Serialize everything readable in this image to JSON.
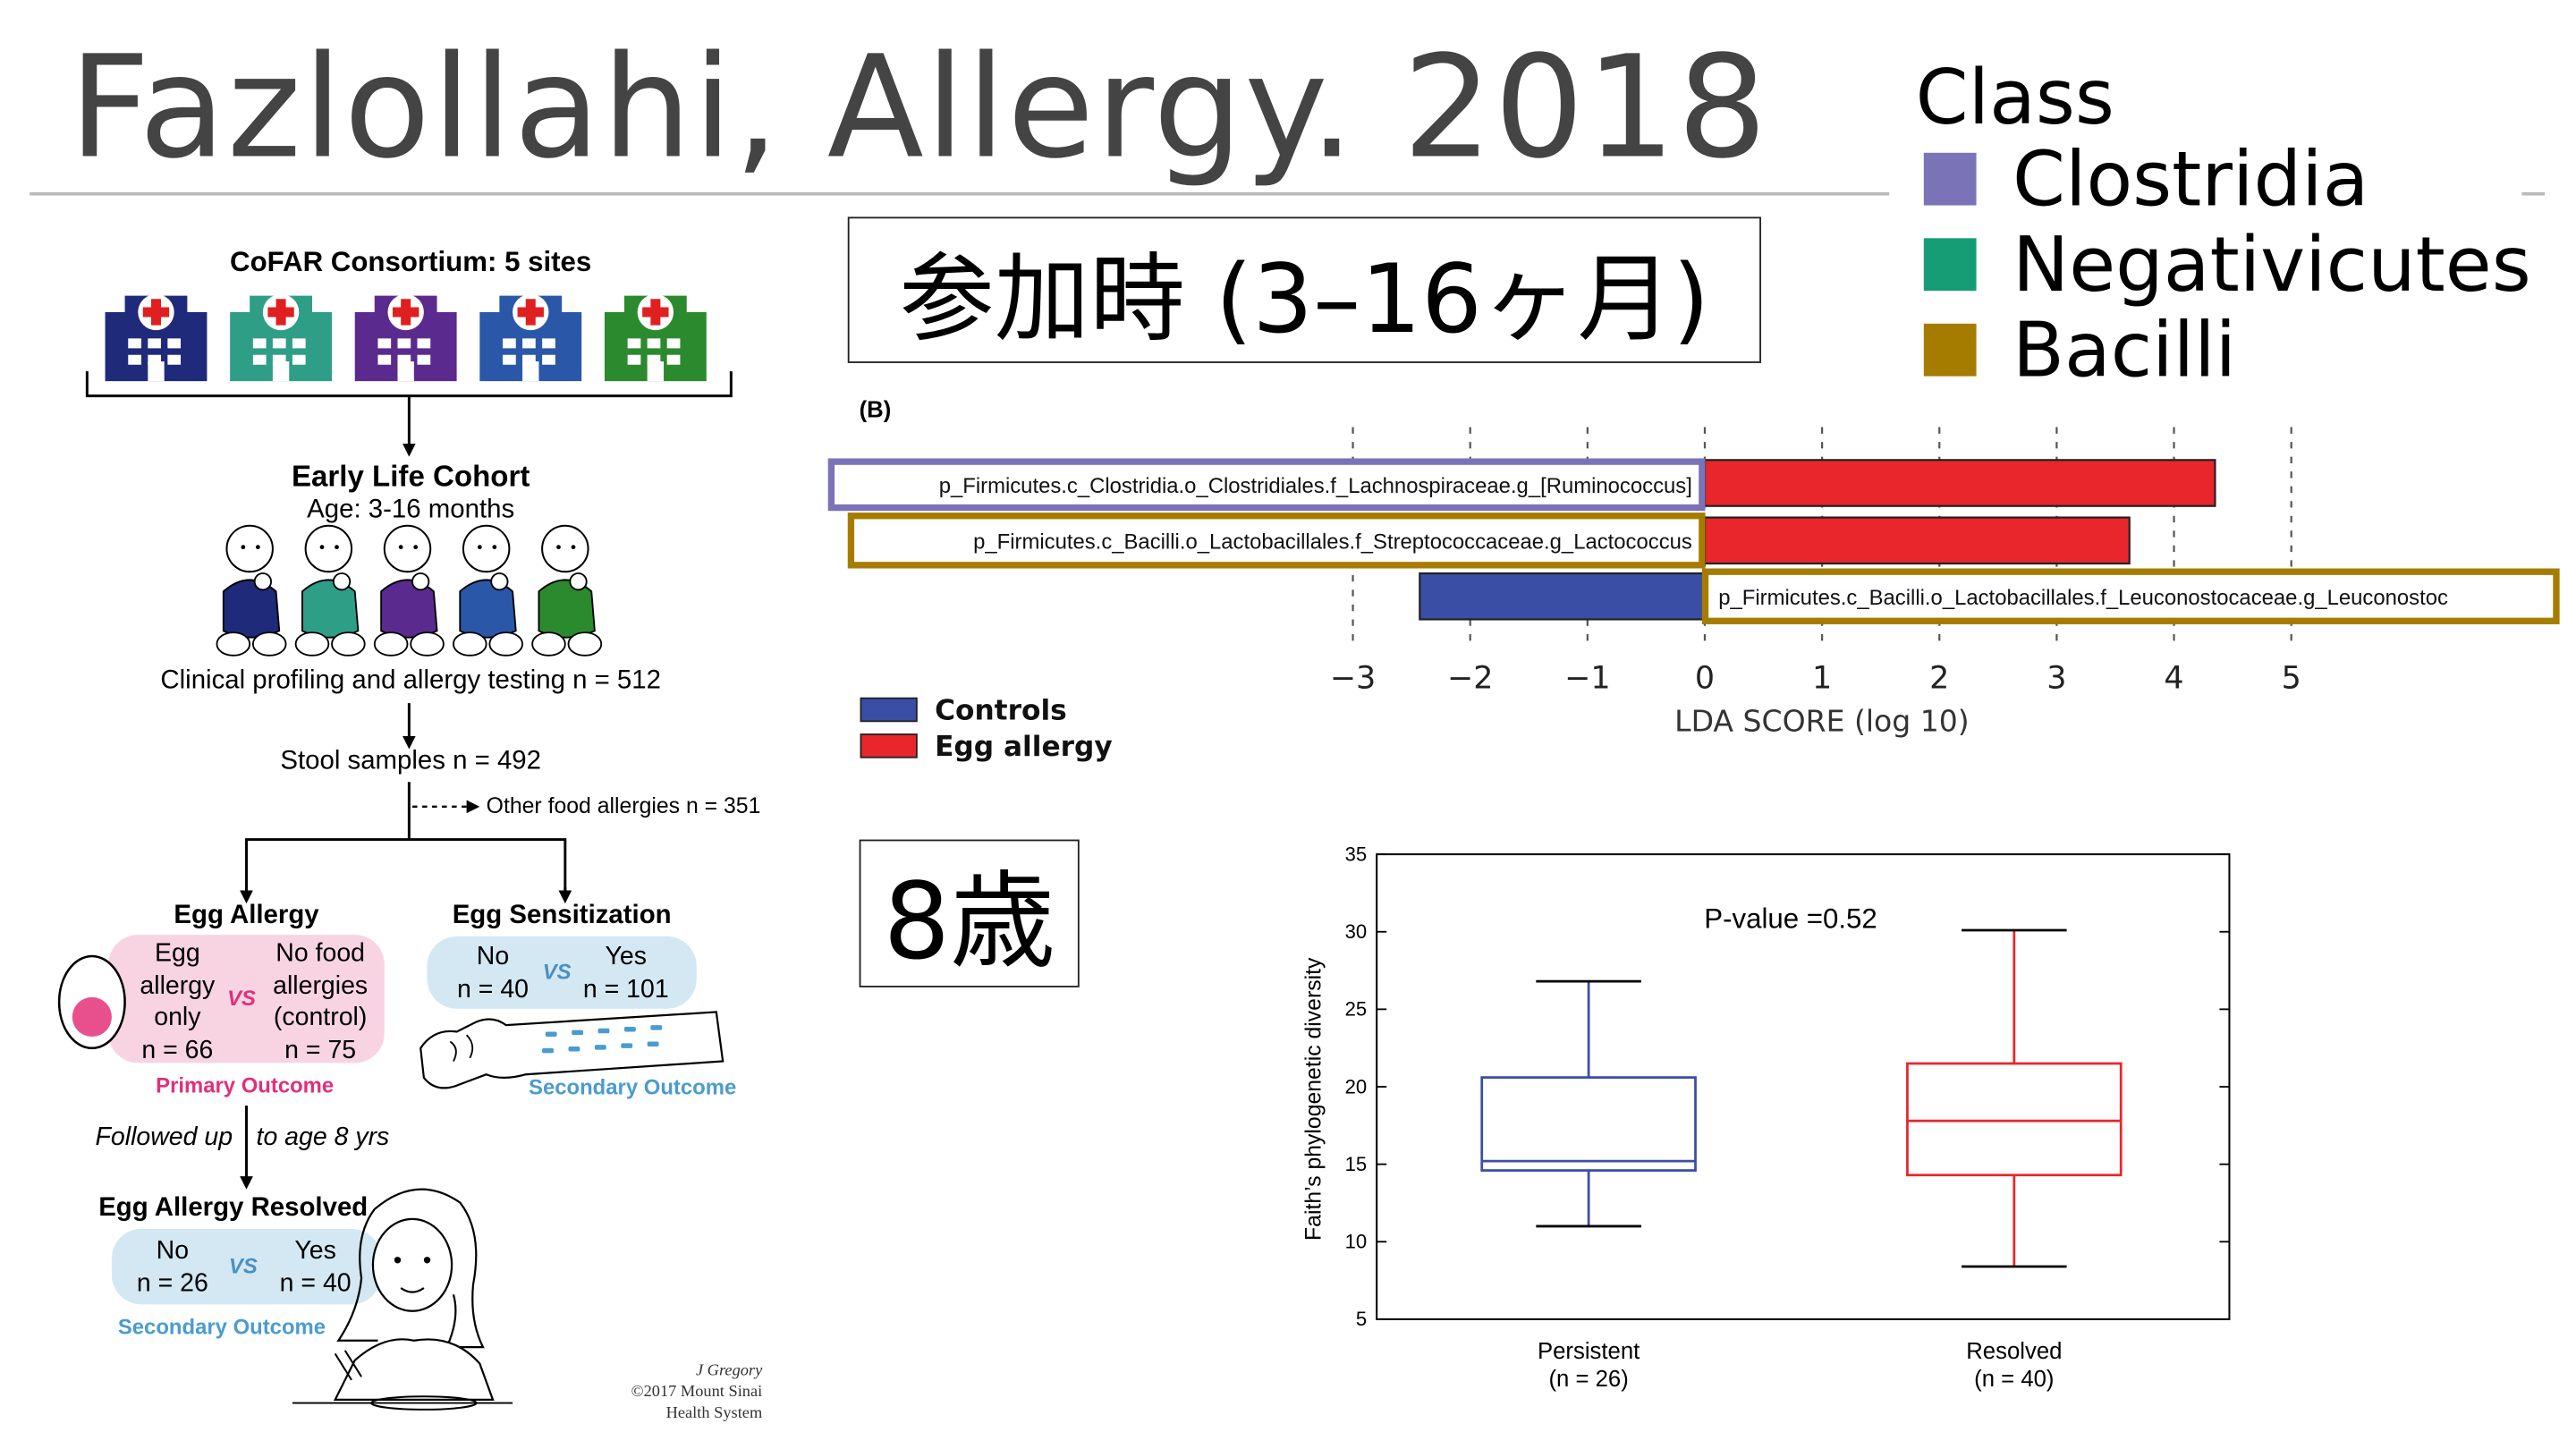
{
  "title": "Fazlollahi, Allergy. 2018",
  "class_legend": {
    "title": "Class",
    "items": [
      {
        "label": "Clostridia",
        "color": "#7b73b8"
      },
      {
        "label": "Negativicutes",
        "color": "#179d76"
      },
      {
        "label": "Bacilli",
        "color": "#a67c00"
      }
    ]
  },
  "label_enrollment": "参加時 (3–16ヶ月)",
  "label_age8": "8歳",
  "flow": {
    "consortium": "CoFAR Consortium: 5 sites",
    "hospital_colors": [
      "#1f2a7a",
      "#2f9e86",
      "#5b2a8e",
      "#2a57a8",
      "#2b8a2e"
    ],
    "cohort_title": "Early Life Cohort",
    "cohort_age": "Age: 3-16 months",
    "profiling": "Clinical profiling and allergy testing n = 512",
    "stool": "Stool samples n = 492",
    "other_allergies": "Other food allergies n = 351",
    "egg_allergy": {
      "title": "Egg Allergy",
      "left": [
        "Egg",
        "allergy",
        "only",
        "n = 66"
      ],
      "vs": "VS",
      "right": [
        "No food",
        "allergies",
        "(control)",
        "n = 75"
      ],
      "outcome": "Primary Outcome"
    },
    "egg_sens": {
      "title": "Egg Sensitization",
      "left": [
        "No",
        "n = 40"
      ],
      "vs": "VS",
      "right": [
        "Yes",
        "n = 101"
      ],
      "outcome": "Secondary Outcome"
    },
    "followed_a": "Followed up",
    "followed_b": "to age 8 yrs",
    "resolved": {
      "title": "Egg Allergy Resolved",
      "left": [
        "No",
        "n = 26"
      ],
      "vs": "VS",
      "right": [
        "Yes",
        "n = 40"
      ],
      "outcome": "Secondary Outcome"
    },
    "credit": [
      "J Gregory",
      "©2017 Mount Sinai",
      "Health System"
    ]
  },
  "chart_data": [
    {
      "type": "bar",
      "panel_label": "(B)",
      "orientation": "horizontal",
      "xlabel": "LDA SCORE (log 10)",
      "xlim": [
        -3,
        5
      ],
      "xticks": [
        "−3",
        "−2",
        "−1",
        "0",
        "1",
        "2",
        "3",
        "4",
        "5"
      ],
      "categories": [
        "p_Firmicutes.c_Clostridia.o_Clostridiales.f_Lachnospiraceae.g_[Ruminococcus]",
        "p_Firmicutes.c_Bacilli.o_Lactobacillales.f_Streptococcaceae.g_Lactococcus",
        "p_Firmicutes.c_Bacilli.o_Lactobacillales.f_Leuconostocaceae.g_Leuconostoc"
      ],
      "values": [
        4.35,
        3.62,
        -2.43
      ],
      "class_colors": [
        "#7b73b8",
        "#a67c00",
        "#a67c00"
      ],
      "legend": [
        {
          "name": "Controls",
          "color": "#3b4ea6"
        },
        {
          "name": "Egg allergy",
          "color": "#e8262b"
        }
      ]
    },
    {
      "type": "box",
      "annotation": "P-value =0.52",
      "ylabel": "Faith’s phylogenetic diversity",
      "ylim": [
        5,
        35
      ],
      "yticks": [
        5,
        10,
        15,
        20,
        25,
        30,
        35
      ],
      "groups": [
        {
          "label": "Persistent",
          "n_label": "(n = 26)",
          "color": "#3b4ea6",
          "whisker_low": 11,
          "q1": 14.6,
          "median": 15.2,
          "q3": 20.6,
          "whisker_high": 26.8
        },
        {
          "label": "Resolved",
          "n_label": "(n = 40)",
          "color": "#e8262b",
          "whisker_low": 8.4,
          "q1": 14.3,
          "median": 17.8,
          "q3": 21.5,
          "whisker_high": 30.1
        }
      ]
    }
  ]
}
